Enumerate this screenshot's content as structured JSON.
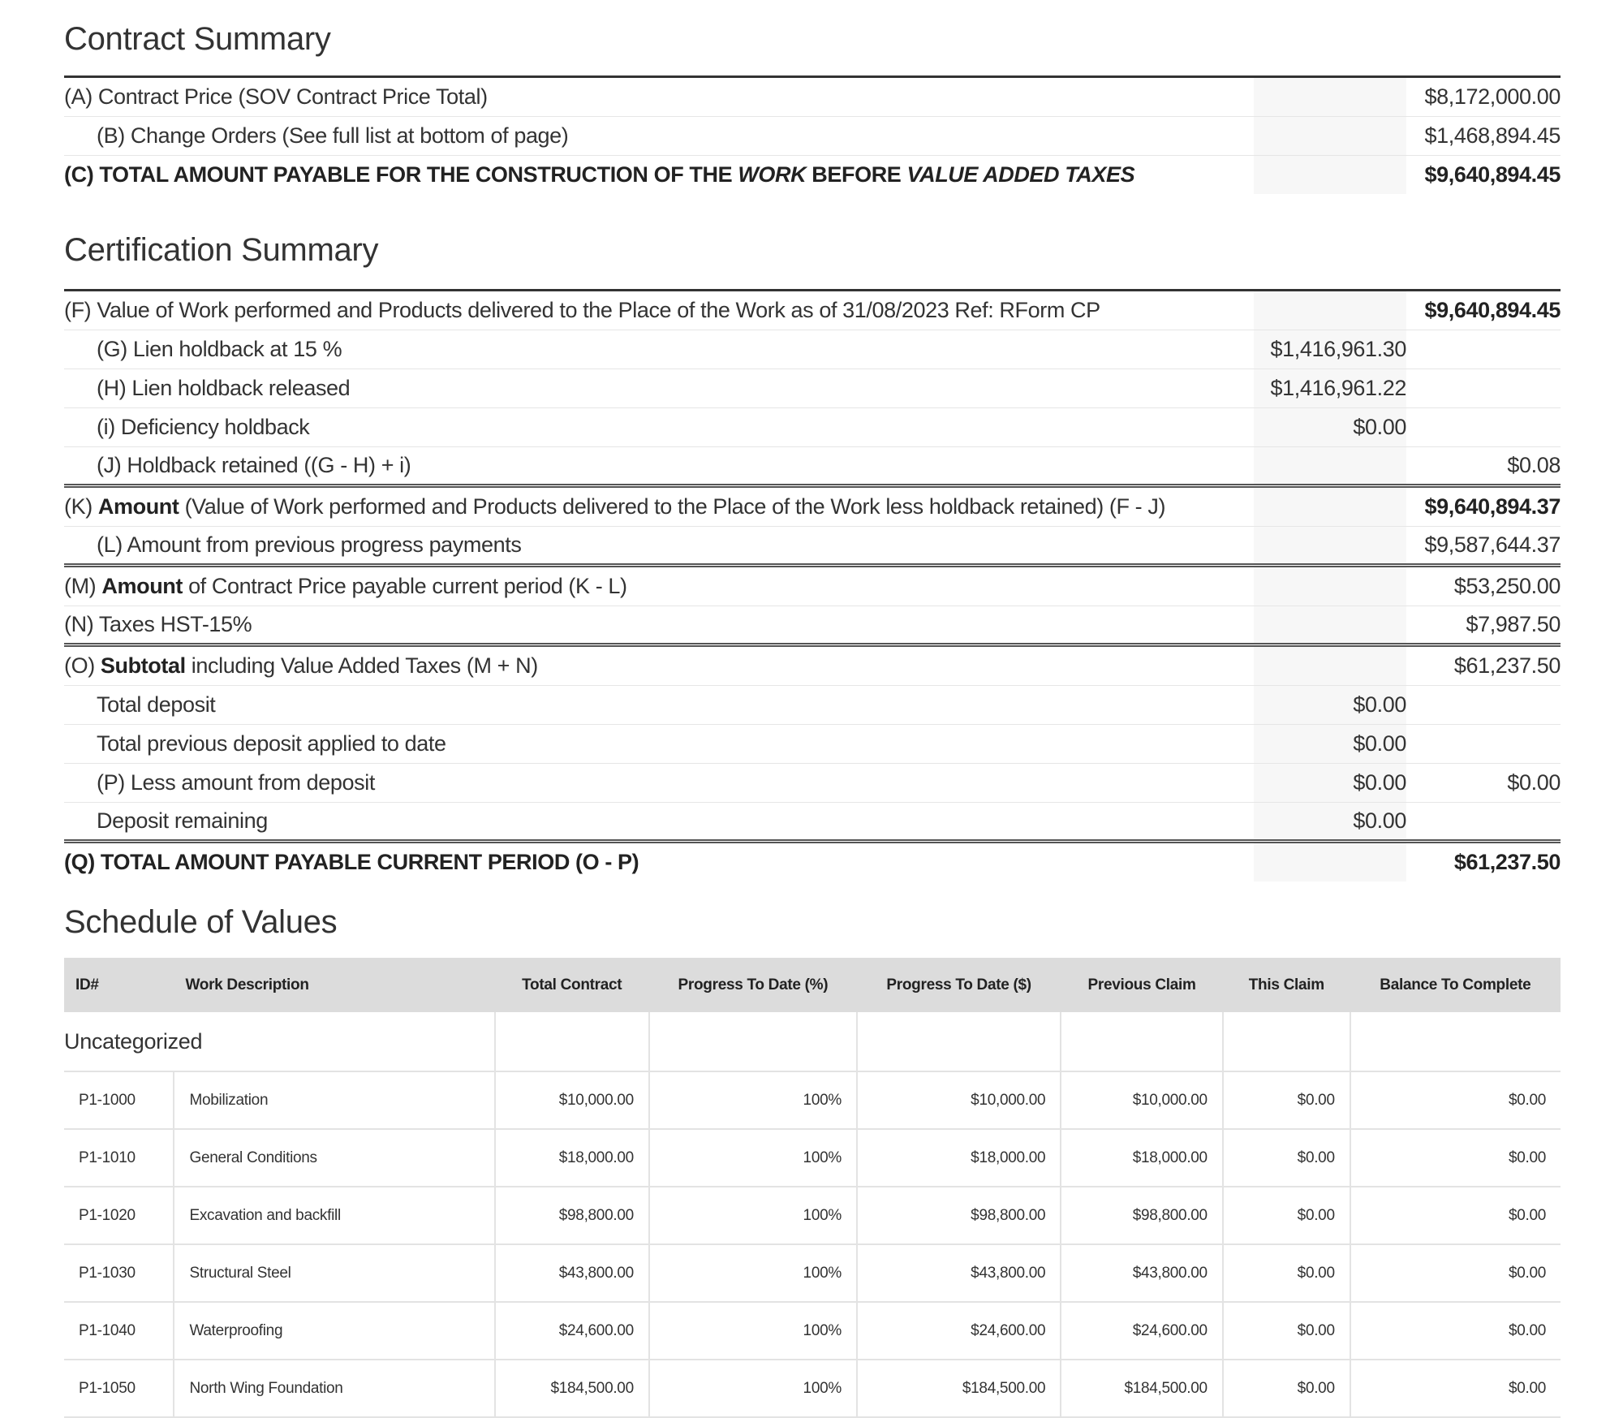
{
  "contract_summary": {
    "title": "Contract Summary",
    "rows": [
      {
        "parts": [
          {
            "t": "(A) Contract Price (SOV Contract Price Total)"
          }
        ],
        "mid": "",
        "right": "$8,172,000.00"
      },
      {
        "indent": true,
        "parts": [
          {
            "t": "(B) Change Orders (See full list at bottom of page)"
          }
        ],
        "mid": "",
        "right": "$1,468,894.45"
      },
      {
        "last": true,
        "parts": [
          {
            "t": "(C) TOTAL AMOUNT PAYABLE FOR THE CONSTRUCTION OF THE ",
            "b": true
          },
          {
            "t": "WORK",
            "b": true,
            "i": true
          },
          {
            "t": " BEFORE ",
            "b": true
          },
          {
            "t": "VALUE ADDED TAXES",
            "b": true,
            "i": true
          }
        ],
        "mid": "",
        "right": "$9,640,894.45",
        "right_bold": true
      }
    ]
  },
  "certification_summary": {
    "title": "Certification Summary",
    "rows": [
      {
        "parts": [
          {
            "t": "(F) Value of Work performed and Products delivered to the Place of the Work as of 31/08/2023 Ref: RForm CP"
          }
        ],
        "mid": "",
        "right": "$9,640,894.45",
        "right_bold": true
      },
      {
        "indent": true,
        "parts": [
          {
            "t": "(G) Lien holdback at 15 %"
          }
        ],
        "mid": "$1,416,961.30",
        "right": ""
      },
      {
        "indent": true,
        "parts": [
          {
            "t": "(H) Lien holdback released"
          }
        ],
        "mid": "$1,416,961.22",
        "right": ""
      },
      {
        "indent": true,
        "parts": [
          {
            "t": "(i) Deficiency holdback"
          }
        ],
        "mid": "$0.00",
        "right": ""
      },
      {
        "indent": true,
        "dbl": true,
        "parts": [
          {
            "t": "(J) Holdback retained ((G - H) + i)"
          }
        ],
        "mid": "",
        "right": "$0.08"
      },
      {
        "parts": [
          {
            "t": "(K) "
          },
          {
            "t": "Amount",
            "b": true
          },
          {
            "t": " (Value of Work performed and Products delivered to the Place of the Work less holdback retained) (F - J)"
          }
        ],
        "mid": "",
        "right": "$9,640,894.37",
        "right_bold": true
      },
      {
        "indent": true,
        "dbl": true,
        "parts": [
          {
            "t": "(L) Amount from previous progress payments"
          }
        ],
        "mid": "",
        "right": "$9,587,644.37"
      },
      {
        "parts": [
          {
            "t": "(M) "
          },
          {
            "t": "Amount",
            "b": true
          },
          {
            "t": " of Contract Price payable current period (K - L)"
          }
        ],
        "mid": "",
        "right": "$53,250.00"
      },
      {
        "dbl": true,
        "parts": [
          {
            "t": "(N) Taxes HST-15%"
          }
        ],
        "mid": "",
        "right": "$7,987.50"
      },
      {
        "parts": [
          {
            "t": "(O) "
          },
          {
            "t": "Subtotal",
            "b": true
          },
          {
            "t": " including Value Added Taxes (M + N)"
          }
        ],
        "mid": "",
        "right": "$61,237.50"
      },
      {
        "indent": true,
        "parts": [
          {
            "t": "Total deposit"
          }
        ],
        "mid": "$0.00",
        "right": ""
      },
      {
        "indent": true,
        "parts": [
          {
            "t": "Total previous deposit applied to date"
          }
        ],
        "mid": "$0.00",
        "right": ""
      },
      {
        "indent": true,
        "parts": [
          {
            "t": "(P) Less amount from deposit"
          }
        ],
        "mid": "$0.00",
        "right": "$0.00"
      },
      {
        "indent": true,
        "dbl": true,
        "parts": [
          {
            "t": "Deposit remaining"
          }
        ],
        "mid": "$0.00",
        "right": ""
      },
      {
        "last": true,
        "parts": [
          {
            "t": "(Q) TOTAL AMOUNT PAYABLE CURRENT PERIOD (O - P)",
            "b": true
          }
        ],
        "mid": "",
        "right": "$61,237.50",
        "right_bold": true
      }
    ]
  },
  "schedule_of_values": {
    "title": "Schedule of Values",
    "columns": [
      "ID#",
      "Work Description",
      "Total Contract",
      "Progress To Date (%)",
      "Progress To Date ($)",
      "Previous Claim",
      "This Claim",
      "Balance To Complete"
    ],
    "category": "Uncategorized",
    "rows": [
      [
        "P1-1000",
        "Mobilization",
        "$10,000.00",
        "100%",
        "$10,000.00",
        "$10,000.00",
        "$0.00",
        "$0.00"
      ],
      [
        "P1-1010",
        "General Conditions",
        "$18,000.00",
        "100%",
        "$18,000.00",
        "$18,000.00",
        "$0.00",
        "$0.00"
      ],
      [
        "P1-1020",
        "Excavation and backfill",
        "$98,800.00",
        "100%",
        "$98,800.00",
        "$98,800.00",
        "$0.00",
        "$0.00"
      ],
      [
        "P1-1030",
        "Structural Steel",
        "$43,800.00",
        "100%",
        "$43,800.00",
        "$43,800.00",
        "$0.00",
        "$0.00"
      ],
      [
        "P1-1040",
        "Waterproofing",
        "$24,600.00",
        "100%",
        "$24,600.00",
        "$24,600.00",
        "$0.00",
        "$0.00"
      ],
      [
        "P1-1050",
        "North Wing Foundation",
        "$184,500.00",
        "100%",
        "$184,500.00",
        "$184,500.00",
        "$0.00",
        "$0.00"
      ]
    ]
  }
}
